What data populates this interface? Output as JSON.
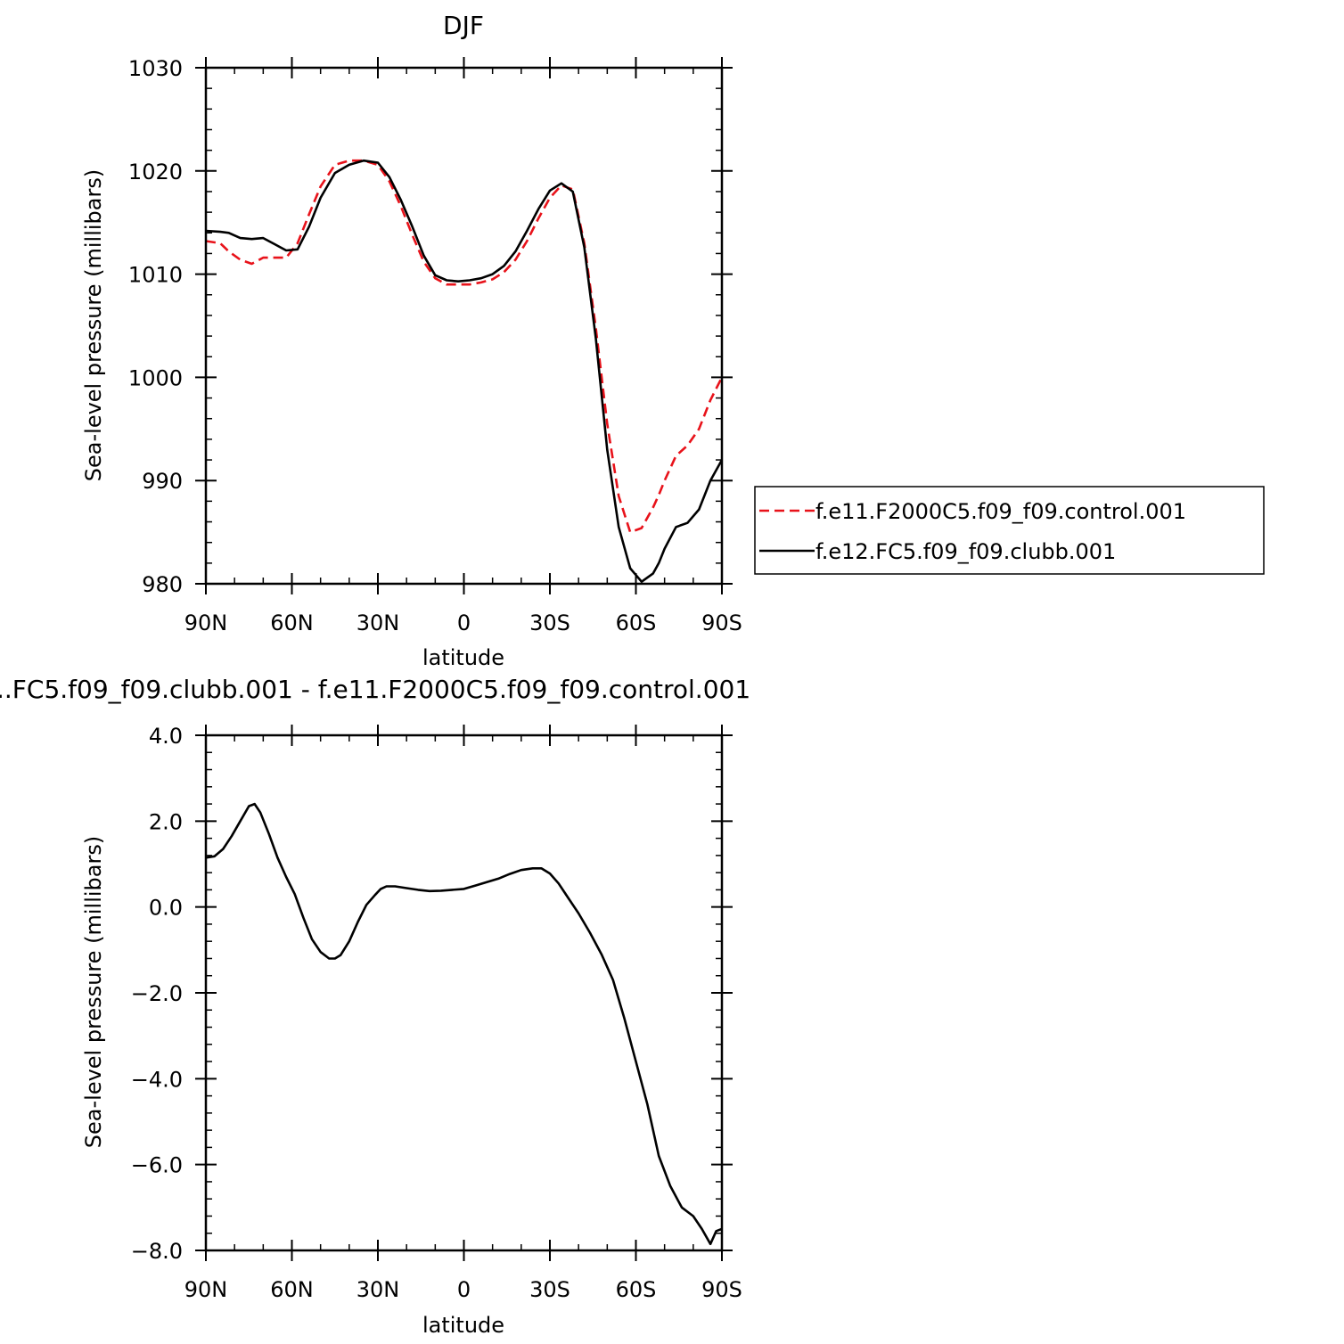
{
  "chart_data": [
    {
      "type": "line",
      "title": "DJF",
      "xlabel": "latitude",
      "ylabel": "Sea-level pressure (millibars)",
      "xlim": [
        90,
        -90
      ],
      "ylim": [
        980,
        1030
      ],
      "xticks": [
        90,
        60,
        30,
        0,
        -30,
        -60,
        -90
      ],
      "xtick_labels": [
        "90N",
        "60N",
        "30N",
        "0",
        "30S",
        "60S",
        "90S"
      ],
      "yticks": [
        980,
        990,
        1000,
        1010,
        1020,
        1030
      ],
      "ytick_labels": [
        "980",
        "990",
        "1000",
        "1010",
        "1020",
        "1030"
      ],
      "legend_position": "right",
      "x": [
        90,
        85,
        82,
        78,
        74,
        70,
        66,
        62,
        58,
        54,
        50,
        45,
        40,
        35,
        30,
        26,
        22,
        18,
        14,
        10,
        6,
        2,
        -2,
        -6,
        -10,
        -14,
        -18,
        -22,
        -26,
        -30,
        -34,
        -38,
        -42,
        -46,
        -50,
        -54,
        -58,
        -62,
        -66,
        -68,
        -70,
        -74,
        -78,
        -82,
        -86,
        -90
      ],
      "series": [
        {
          "name": "f.e11.F2000C5.f09_f09.control.001",
          "color": "#e8121a",
          "dash": true,
          "values": [
            1013.2,
            1013.0,
            1012.2,
            1011.4,
            1011.0,
            1011.6,
            1011.6,
            1011.6,
            1013.0,
            1015.8,
            1018.5,
            1020.6,
            1021.0,
            1021.0,
            1020.6,
            1019.0,
            1016.6,
            1013.8,
            1011.2,
            1009.6,
            1009.0,
            1009.0,
            1009.0,
            1009.2,
            1009.5,
            1010.2,
            1011.4,
            1013.2,
            1015.4,
            1017.4,
            1018.6,
            1018.2,
            1013.0,
            1004.8,
            995.5,
            988.5,
            985.0,
            985.4,
            987.4,
            988.6,
            990.0,
            992.4,
            993.4,
            995.0,
            997.8,
            1000.0
          ]
        },
        {
          "name": "f.e12.FC5.f09_f09.clubb.001",
          "color": "#000000",
          "dash": false,
          "values": [
            1014.2,
            1014.1,
            1014.0,
            1013.5,
            1013.4,
            1013.5,
            1012.9,
            1012.3,
            1012.4,
            1014.6,
            1017.4,
            1019.8,
            1020.6,
            1021.0,
            1020.8,
            1019.4,
            1017.2,
            1014.6,
            1011.8,
            1009.9,
            1009.4,
            1009.3,
            1009.4,
            1009.6,
            1010.0,
            1010.8,
            1012.2,
            1014.2,
            1016.3,
            1018.1,
            1018.8,
            1018.0,
            1012.6,
            1003.8,
            993.0,
            985.5,
            981.5,
            980.2,
            981.0,
            982.0,
            983.4,
            985.5,
            985.9,
            987.2,
            990.0,
            992.0
          ]
        }
      ]
    },
    {
      "type": "line",
      "title": "..FC5.f09_f09.clubb.001 - f.e11.F2000C5.f09_f09.control.001",
      "xlabel": "latitude",
      "ylabel": "Sea-level pressure (millibars)",
      "xlim": [
        90,
        -90
      ],
      "ylim": [
        -8.0,
        4.0
      ],
      "xticks": [
        90,
        60,
        30,
        0,
        -30,
        -60,
        -90
      ],
      "xtick_labels": [
        "90N",
        "60N",
        "30N",
        "0",
        "30S",
        "60S",
        "90S"
      ],
      "yticks": [
        -8,
        -6,
        -4,
        -2,
        0,
        2,
        4
      ],
      "ytick_labels": [
        "−8.0",
        "−6.0",
        "−4.0",
        "−2.0",
        "0.0",
        "2.0",
        "4.0"
      ],
      "x": [
        90,
        87,
        84,
        81,
        78,
        75,
        73,
        71,
        68,
        65,
        62,
        59,
        56,
        53,
        50,
        47,
        45,
        43,
        40,
        37,
        34,
        31,
        29,
        27,
        24,
        20,
        16,
        12,
        8,
        4,
        0,
        -4,
        -8,
        -12,
        -16,
        -20,
        -24,
        -27,
        -30,
        -33,
        -36,
        -40,
        -44,
        -48,
        -52,
        -56,
        -60,
        -64,
        -68,
        -72,
        -76,
        -80,
        -83,
        -86,
        -88,
        -90
      ],
      "series": [
        {
          "name": "",
          "color": "#000000",
          "dash": false,
          "values": [
            1.15,
            1.18,
            1.35,
            1.65,
            2.0,
            2.35,
            2.4,
            2.2,
            1.7,
            1.15,
            0.7,
            0.3,
            -0.25,
            -0.75,
            -1.05,
            -1.2,
            -1.2,
            -1.12,
            -0.8,
            -0.35,
            0.05,
            0.28,
            0.42,
            0.48,
            0.48,
            0.44,
            0.4,
            0.37,
            0.38,
            0.4,
            0.42,
            0.5,
            0.58,
            0.66,
            0.77,
            0.86,
            0.9,
            0.9,
            0.78,
            0.55,
            0.25,
            -0.15,
            -0.6,
            -1.1,
            -1.7,
            -2.6,
            -3.6,
            -4.6,
            -5.8,
            -6.5,
            -7.0,
            -7.2,
            -7.5,
            -7.85,
            -7.55,
            -7.5
          ]
        }
      ]
    }
  ]
}
